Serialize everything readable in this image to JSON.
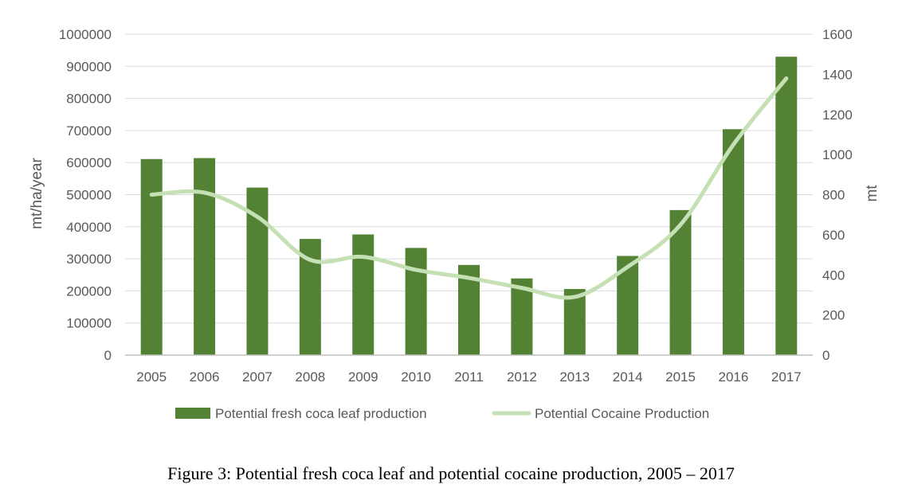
{
  "chart_data": {
    "type": "bar",
    "categories": [
      "2005",
      "2006",
      "2007",
      "2008",
      "2009",
      "2010",
      "2011",
      "2012",
      "2013",
      "2014",
      "2015",
      "2016",
      "2017"
    ],
    "series": [
      {
        "name": "Potential fresh coca leaf production",
        "type": "bar",
        "axis": "left",
        "color": "#548235",
        "values": [
          611000,
          614000,
          522000,
          362000,
          376000,
          334000,
          281000,
          239000,
          206000,
          309000,
          452000,
          704000,
          930000
        ]
      },
      {
        "name": "Potential Cocaine Production",
        "type": "line",
        "axis": "right",
        "color": "#c5e0b4",
        "values": [
          800,
          810,
          690,
          475,
          490,
          425,
          385,
          335,
          290,
          440,
          650,
          1050,
          1380
        ]
      }
    ],
    "ylabel": "mt/ha/year",
    "ylim": [
      0,
      1000000
    ],
    "yticks": [
      "0",
      "100000",
      "200000",
      "300000",
      "400000",
      "500000",
      "600000",
      "700000",
      "800000",
      "900000",
      "1000000"
    ],
    "y2label": "mt",
    "y2lim": [
      0,
      1600
    ],
    "y2ticks": [
      "0",
      "200",
      "400",
      "600",
      "800",
      "1000",
      "1200",
      "1400",
      "1600"
    ],
    "legend_position": "bottom",
    "grid": true
  },
  "caption": "Figure 3: Potential fresh coca leaf and potential cocaine production, 2005 – 2017"
}
